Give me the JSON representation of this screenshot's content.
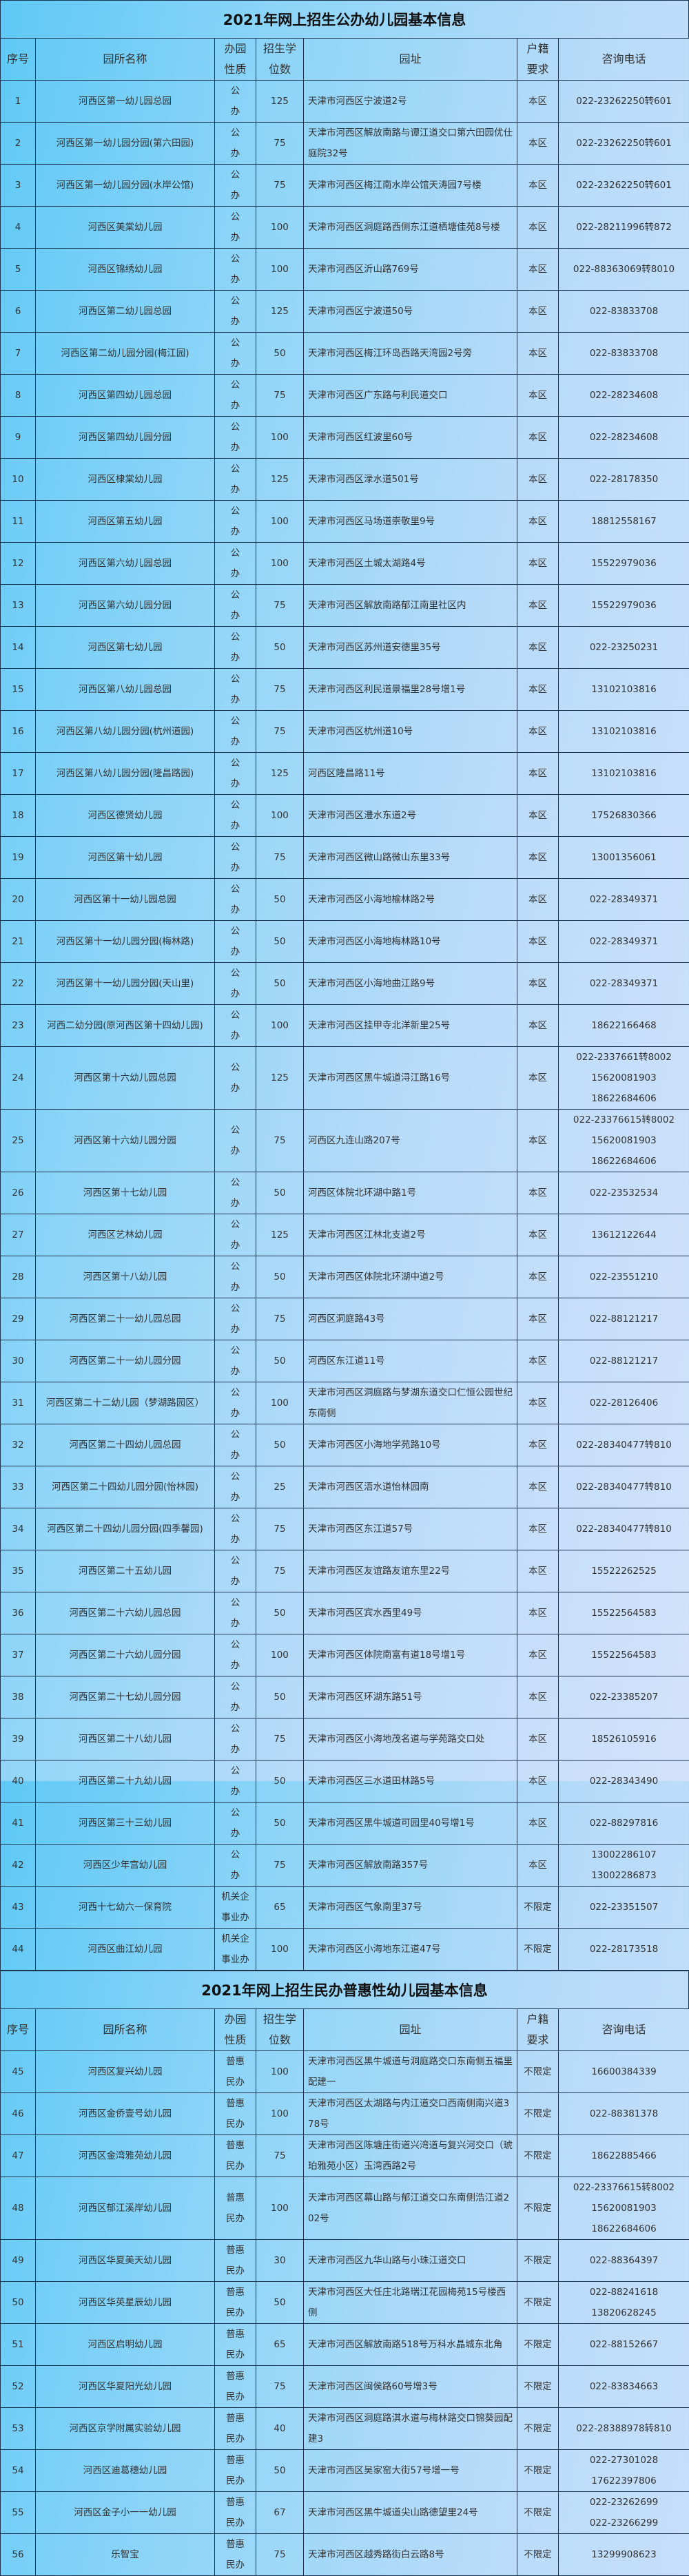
{
  "headers": [
    "序号",
    "园所名称",
    "办园性质",
    "招生学位数",
    "园址",
    "户籍要求",
    "咨询电话"
  ],
  "sections": [
    {
      "title": "2021年网上招生公办幼儿园基本信息",
      "rows": [
        [
          "1",
          "河西区第一幼儿园总园",
          "公办",
          "125",
          "天津市河西区宁波道2号",
          "本区",
          [
            "022-23262250转601"
          ]
        ],
        [
          "2",
          "河西区第一幼儿园分园(第六田园)",
          "公办",
          "75",
          "天津市河西区解放南路与谭江道交口第六田园优仕庭院32号",
          "本区",
          [
            "022-23262250转601"
          ]
        ],
        [
          "3",
          "河西区第一幼儿园分园(水岸公馆)",
          "公办",
          "75",
          "天津市河西区梅江南水岸公馆天涛园7号楼",
          "本区",
          [
            "022-23262250转601"
          ]
        ],
        [
          "4",
          "河西区美棠幼儿园",
          "公办",
          "100",
          "天津市河西区洞庭路西侧东江道栖塘佳苑8号楼",
          "本区",
          [
            "022-28211996转872"
          ]
        ],
        [
          "5",
          "河西区锦绣幼儿园",
          "公办",
          "100",
          "天津市河西区沂山路769号",
          "本区",
          [
            "022-88363069转8010"
          ]
        ],
        [
          "6",
          "河西区第二幼儿园总园",
          "公办",
          "125",
          "天津市河西区宁波道50号",
          "本区",
          [
            "022-83833708"
          ]
        ],
        [
          "7",
          "河西区第二幼儿园分园(梅江园)",
          "公办",
          "50",
          "天津市河西区梅江环岛西路天湾园2号旁",
          "本区",
          [
            "022-83833708"
          ]
        ],
        [
          "8",
          "河西区第四幼儿园总园",
          "公办",
          "75",
          "天津市河西区广东路与利民道交口",
          "本区",
          [
            "022-28234608"
          ]
        ],
        [
          "9",
          "河西区第四幼儿园分园",
          "公办",
          "100",
          "天津市河西区红波里60号",
          "本区",
          [
            "022-28234608"
          ]
        ],
        [
          "10",
          "河西区棣棠幼儿园",
          "公办",
          "125",
          "天津市河西区渌水道501号",
          "本区",
          [
            "022-28178350"
          ]
        ],
        [
          "11",
          "河西区第五幼儿园",
          "公办",
          "100",
          "天津市河西区马场道崇敬里9号",
          "本区",
          [
            "18812558167"
          ]
        ],
        [
          "12",
          "河西区第六幼儿园总园",
          "公办",
          "100",
          "天津市河西区土城太湖路4号",
          "本区",
          [
            "15522979036"
          ]
        ],
        [
          "13",
          "河西区第六幼儿园分园",
          "公办",
          "75",
          "天津市河西区解放南路郁江南里社区内",
          "本区",
          [
            "15522979036"
          ]
        ],
        [
          "14",
          "河西区第七幼儿园",
          "公办",
          "50",
          "天津市河西区苏州道安德里35号",
          "本区",
          [
            "022-23250231"
          ]
        ],
        [
          "15",
          "河西区第八幼儿园总园",
          "公办",
          "75",
          "天津市河西区利民道景福里28号增1号",
          "本区",
          [
            "13102103816"
          ]
        ],
        [
          "16",
          "河西区第八幼儿园分园(杭州道园)",
          "公办",
          "75",
          "天津市河西区杭州道10号",
          "本区",
          [
            "13102103816"
          ]
        ],
        [
          "17",
          "河西区第八幼儿园分园(隆昌路园)",
          "公办",
          "125",
          "河西区隆昌路11号",
          "本区",
          [
            "13102103816"
          ]
        ],
        [
          "18",
          "河西区德贤幼儿园",
          "公办",
          "100",
          "天津市河西区澧水东道2号",
          "本区",
          [
            "17526830366"
          ]
        ],
        [
          "19",
          "河西区第十幼儿园",
          "公办",
          "75",
          "天津市河西区微山路微山东里33号",
          "本区",
          [
            "13001356061"
          ]
        ],
        [
          "20",
          "河西区第十一幼儿园总园",
          "公办",
          "50",
          "天津市河西区小海地榆林路2号",
          "本区",
          [
            "022-28349371"
          ]
        ],
        [
          "21",
          "河西区第十一幼儿园分园(梅林路)",
          "公办",
          "50",
          "天津市河西区小海地梅林路10号",
          "本区",
          [
            "022-28349371"
          ]
        ],
        [
          "22",
          "河西区第十一幼儿园分园(天山里)",
          "公办",
          "50",
          "天津市河西区小海地曲江路9号",
          "本区",
          [
            "022-28349371"
          ]
        ],
        [
          "23",
          "河西二幼分园(原河西区第十四幼儿园)",
          "公办",
          "100",
          "天津市河西区挂甲寺北洋新里25号",
          "本区",
          [
            "18622166468"
          ]
        ],
        [
          "24",
          "河西区第十六幼儿园总园",
          "公办",
          "125",
          "天津市河西区黑牛城道浔江路16号",
          "本区",
          [
            "022-2337661转8002",
            "15620081903",
            "18622684606"
          ]
        ],
        [
          "25",
          "河西区第十六幼儿园分园",
          "公办",
          "75",
          "河西区九连山路207号",
          "本区",
          [
            "022-23376615转8002",
            "15620081903",
            "18622684606"
          ]
        ],
        [
          "26",
          "河西区第十七幼儿园",
          "公办",
          "50",
          "河西区体院北环湖中路1号",
          "本区",
          [
            "022-23532534"
          ]
        ],
        [
          "27",
          "河西区艺林幼儿园",
          "公办",
          "125",
          "天津市河西区江林北支道2号",
          "本区",
          [
            "13612122644"
          ]
        ],
        [
          "28",
          "河西区第十八幼儿园",
          "公办",
          "50",
          "天津市河西区体院北环湖中道2号",
          "本区",
          [
            "022-23551210"
          ]
        ],
        [
          "29",
          "河西区第二十一幼儿园总园",
          "公办",
          "75",
          "河西区洞庭路43号",
          "本区",
          [
            "022-88121217"
          ]
        ],
        [
          "30",
          "河西区第二十一幼儿园分园",
          "公办",
          "50",
          "河西区东江道11号",
          "本区",
          [
            "022-88121217"
          ]
        ],
        [
          "31",
          "河西区第二十二幼儿园（梦湖路园区）",
          "公办",
          "100",
          "天津市河西区洞庭路与梦湖东道交口仁恒公园世纪东南侧",
          "本区",
          [
            "022-28126406"
          ]
        ],
        [
          "32",
          "河西区第二十四幼儿园总园",
          "公办",
          "50",
          "天津市河西区小海地学苑路10号",
          "本区",
          [
            "022-28340477转810"
          ]
        ],
        [
          "33",
          "河西区第二十四幼儿园分园(怡林园)",
          "公办",
          "25",
          "天津市河西区浯水道怡林园南",
          "本区",
          [
            "022-28340477转810"
          ]
        ],
        [
          "34",
          "河西区第二十四幼儿园分园(四季馨园)",
          "公办",
          "75",
          "天津市河西区东江道57号",
          "本区",
          [
            "022-28340477转810"
          ]
        ],
        [
          "35",
          "河西区第二十五幼儿园",
          "公办",
          "75",
          "天津市河西区友谊路友谊东里22号",
          "本区",
          [
            "15522262525"
          ]
        ],
        [
          "36",
          "河西区第二十六幼儿园总园",
          "公办",
          "50",
          "天津市河西区宾水西里49号",
          "本区",
          [
            "15522564583"
          ]
        ],
        [
          "37",
          "河西区第二十六幼儿园分园",
          "公办",
          "100",
          "天津市河西区体院南富有道18号增1号",
          "本区",
          [
            "15522564583"
          ]
        ],
        [
          "38",
          "河西区第二十七幼儿园分园",
          "公办",
          "50",
          "天津市河西区环湖东路51号",
          "本区",
          [
            "022-23385207"
          ]
        ],
        [
          "39",
          "河西区第二十八幼儿园",
          "公办",
          "75",
          "天津市河西区小海地茂名道与学苑路交口处",
          "本区",
          [
            "18526105916"
          ]
        ],
        [
          "40",
          "河西区第二十九幼儿园",
          "公办",
          "50",
          "天津市河西区三水道田林路5号",
          "本区",
          [
            "022-28343490"
          ]
        ],
        [
          "41",
          "河西区第三十三幼儿园",
          "公办",
          "50",
          "天津市河西区黑牛城道可园里40号增1号",
          "本区",
          [
            "022-88297816"
          ]
        ],
        [
          "42",
          "河西区少年宫幼儿园",
          "公办",
          "75",
          "天津市河西区解放南路357号",
          "本区",
          [
            "13002286107",
            "13002286873"
          ]
        ],
        [
          "43",
          "河西十七幼六一保育院",
          "机关企事业办",
          "65",
          "天津市河西区气象南里37号",
          "不限定",
          [
            "022-23351507"
          ]
        ],
        [
          "44",
          "河西区曲江幼儿园",
          "机关企事业办",
          "100",
          "天津市河西区小海地东江道47号",
          "不限定",
          [
            "022-28173518"
          ]
        ]
      ]
    },
    {
      "title": "2021年网上招生民办普惠性幼儿园基本信息",
      "rows": [
        [
          "45",
          "河西区复兴幼儿园",
          "普惠民办",
          "100",
          "天津市河西区黑牛城道与洞庭路交口东南侧五福里配建一",
          "不限定",
          [
            "16600384339"
          ]
        ],
        [
          "46",
          "河西区金侨壹号幼儿园",
          "普惠民办",
          "100",
          "天津市河西区太湖路与内江道交口西南侧南兴道378号",
          "不限定",
          [
            "022-88381378"
          ]
        ],
        [
          "47",
          "河西区金湾雅苑幼儿园",
          "普惠民办",
          "75",
          "天津市河西区陈塘庄街道兴湾道与复兴河交口（琥珀雅苑小区）玉湾西路2号",
          "不限定",
          [
            "18622885466"
          ]
        ],
        [
          "48",
          "河西区郁江溪岸幼儿园",
          "普惠民办",
          "100",
          "天津市河西区幕山路与郁江道交口东南侧浩江道202号",
          "不限定",
          [
            "022-23376615转8002",
            "15620081903",
            "18622684606"
          ]
        ],
        [
          "49",
          "河西区华夏美天幼儿园",
          "普惠民办",
          "30",
          "天津市河西区九华山路与小珠江道交口",
          "不限定",
          [
            "022-88364397"
          ]
        ],
        [
          "50",
          "河西区华英星辰幼儿园",
          "普惠民办",
          "50",
          "天津市河西区大任庄北路瑞江花园梅苑15号楼西侧",
          "不限定",
          [
            "022-88241618",
            "13820628245"
          ]
        ],
        [
          "51",
          "河西区启明幼儿园",
          "普惠民办",
          "65",
          "天津市河西区解放南路518号万科水晶城东北角",
          "不限定",
          [
            "022-88152667"
          ]
        ],
        [
          "52",
          "河西区华夏阳光幼儿园",
          "普惠民办",
          "75",
          "天津市河西区闽侯路60号增3号",
          "不限定",
          [
            "022-83834663"
          ]
        ],
        [
          "53",
          "河西区京学附属实验幼儿园",
          "普惠民办",
          "40",
          "天津市河西区洞庭路淇水道与梅林路交口锦葵园配建3",
          "不限定",
          [
            "022-28388978转810"
          ]
        ],
        [
          "54",
          "河西区迪葛穗幼儿园",
          "普惠民办",
          "50",
          "天津市河西区吴家窑大街57号增一号",
          "不限定",
          [
            "022-27301028",
            "17622397806"
          ]
        ],
        [
          "55",
          "河西区金子小一一幼儿园",
          "普惠民办",
          "67",
          "天津市河西区黑牛城道尖山路德望里24号",
          "不限定",
          [
            "022-23262699",
            "022-23266299"
          ]
        ],
        [
          "56",
          "乐智宝",
          "普惠民办",
          "75",
          "天津市河西区越秀路街白云路8号",
          "不限定",
          [
            "13299908623"
          ]
        ]
      ]
    }
  ]
}
